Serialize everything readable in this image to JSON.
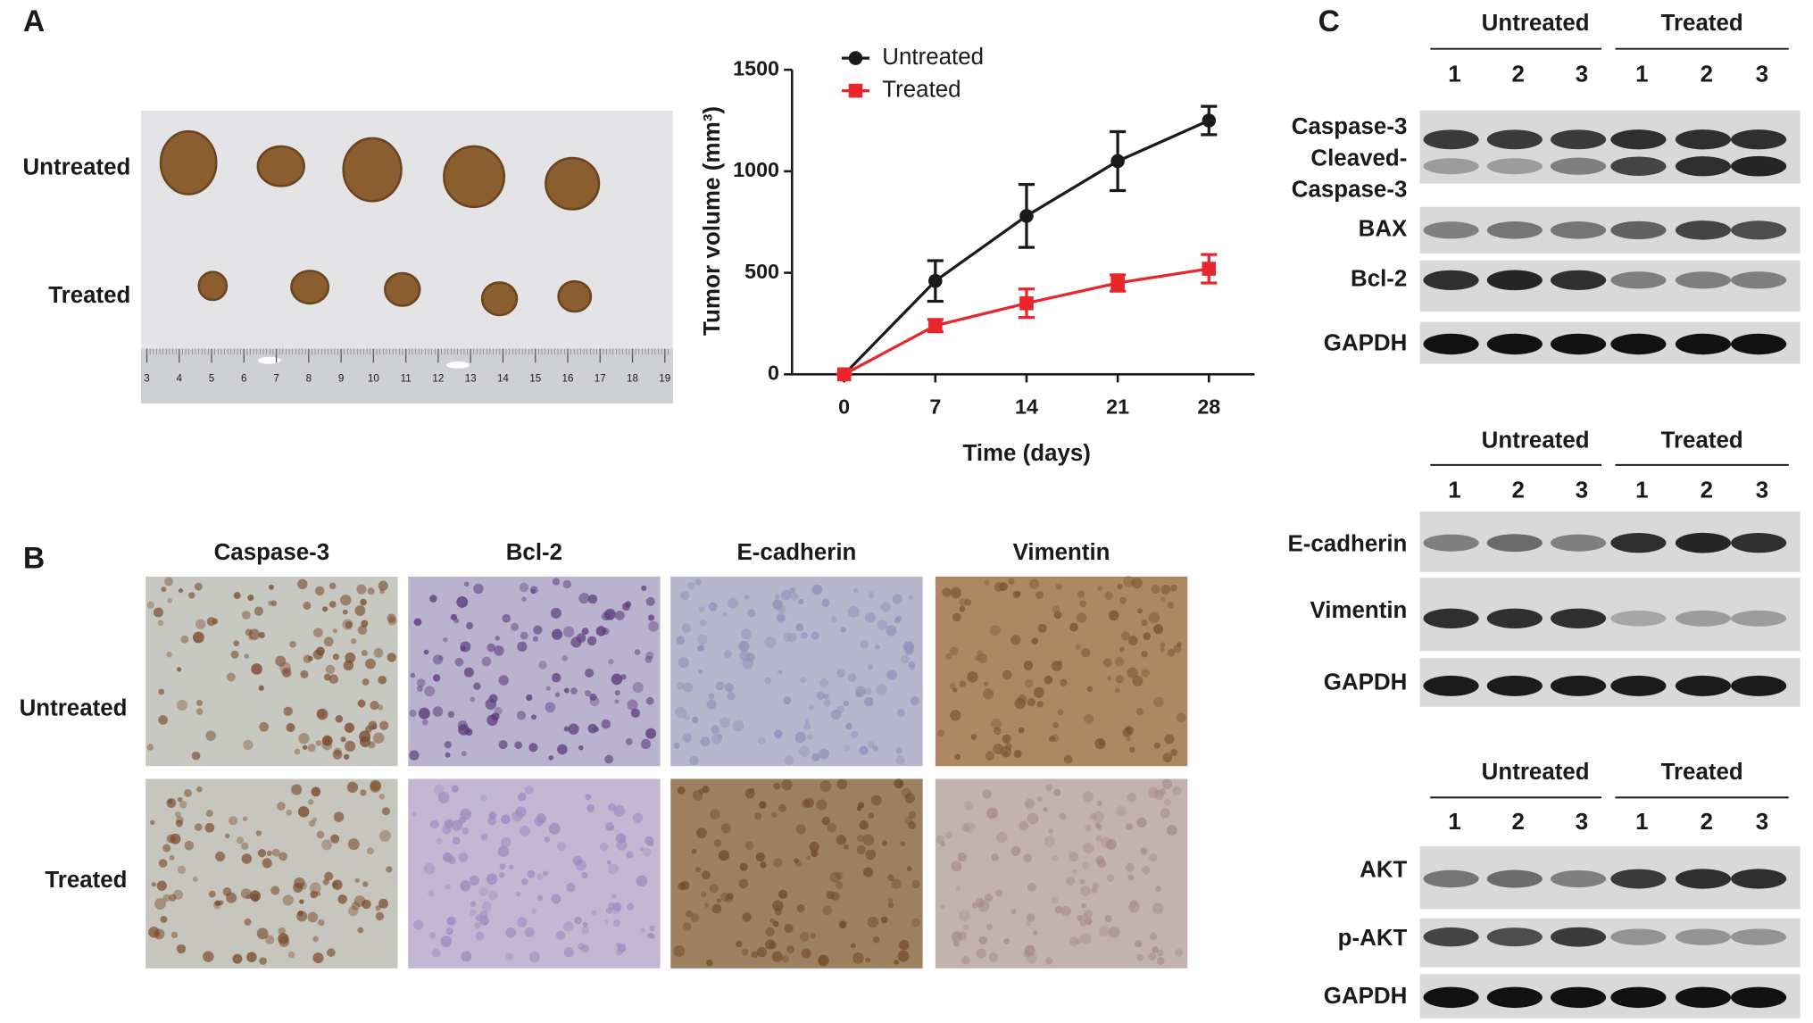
{
  "panel_labels": [
    "A",
    "B",
    "C"
  ],
  "panel_a": {
    "row_labels": [
      "Untreated",
      "Treated"
    ],
    "ruler_labels": [
      "3",
      "4",
      "5",
      "6",
      "7",
      "8",
      "9",
      "10",
      "11",
      "12",
      "13",
      "14",
      "15",
      "16",
      "17",
      "18",
      "19"
    ]
  },
  "chart_data": {
    "type": "line",
    "x_label": "Time (days)",
    "y_label": "Tumor volume (mm³)",
    "x": [
      0,
      7,
      14,
      21,
      28
    ],
    "series": [
      {
        "name": "Untreated",
        "color": "#1a1a1a",
        "marker": "circle",
        "values": [
          0,
          460,
          780,
          1050,
          1250
        ],
        "errors": [
          0,
          100,
          155,
          145,
          70
        ]
      },
      {
        "name": "Treated",
        "color": "#e8262b",
        "marker": "square",
        "values": [
          0,
          240,
          350,
          450,
          520
        ],
        "errors": [
          0,
          30,
          70,
          40,
          70
        ]
      }
    ],
    "xlim": [
      -4,
      31.5
    ],
    "xticks": [
      0,
      7,
      14,
      21,
      28
    ],
    "ylim": [
      0,
      1500
    ],
    "yticks": [
      0,
      500,
      1000,
      1500
    ],
    "legend": "top-left"
  },
  "panel_b": {
    "columns": [
      "Caspase-3",
      "Bcl-2",
      "E-cadherin",
      "Vimentin"
    ],
    "row_labels": [
      "Untreated",
      "Treated"
    ]
  },
  "panel_c": {
    "blots": [
      {
        "groups": [
          "Untreated",
          "Treated"
        ],
        "lanes": [
          "1",
          "2",
          "3",
          "1",
          "2",
          "3"
        ],
        "rows": [
          "Caspase-3",
          "Cleaved-",
          "Caspase-3",
          "BAX",
          "Bcl-2",
          "GAPDH"
        ]
      },
      {
        "groups": [
          "Untreated",
          "Treated"
        ],
        "lanes": [
          "1",
          "2",
          "3",
          "1",
          "2",
          "3"
        ],
        "rows": [
          "E-cadherin",
          "Vimentin",
          "GAPDH"
        ]
      },
      {
        "groups": [
          "Untreated",
          "Treated"
        ],
        "lanes": [
          "1",
          "2",
          "3",
          "1",
          "2",
          "3"
        ],
        "rows": [
          "AKT",
          "p-AKT",
          "GAPDH"
        ]
      }
    ]
  }
}
